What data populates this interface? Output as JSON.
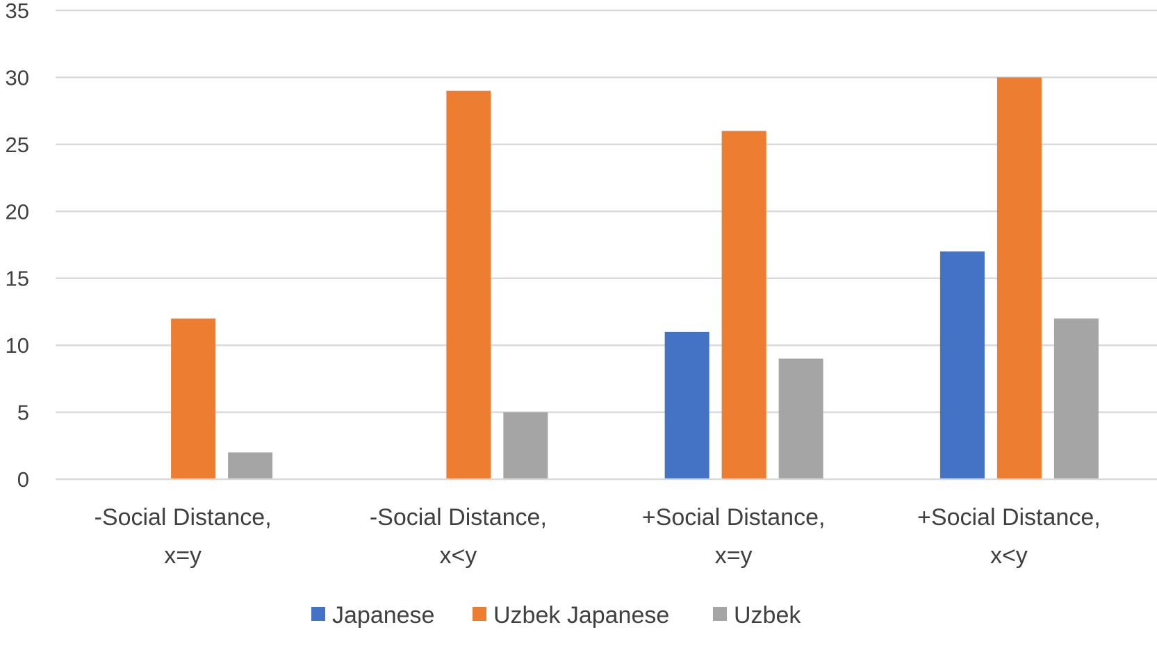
{
  "chart_data": {
    "type": "bar",
    "categories": [
      [
        "-Social Distance,",
        "x=y"
      ],
      [
        "-Social Distance,",
        "x<y"
      ],
      [
        "+Social Distance,",
        "x=y"
      ],
      [
        "+Social Distance,",
        "x<y"
      ]
    ],
    "series": [
      {
        "name": "Japanese",
        "color": "#4472C4",
        "values": [
          0,
          0,
          11,
          17
        ]
      },
      {
        "name": "Uzbek Japanese",
        "color": "#ED7D31",
        "values": [
          12,
          29,
          26,
          30
        ]
      },
      {
        "name": "Uzbek",
        "color": "#A5A5A5",
        "values": [
          2,
          5,
          9,
          12
        ]
      }
    ],
    "y_ticks": [
      "0",
      "5",
      "10",
      "15",
      "20",
      "25",
      "30",
      "35"
    ],
    "ylim": [
      0,
      35
    ],
    "grid": true,
    "legend_position": "bottom",
    "title": "",
    "xlabel": "",
    "ylabel": ""
  }
}
